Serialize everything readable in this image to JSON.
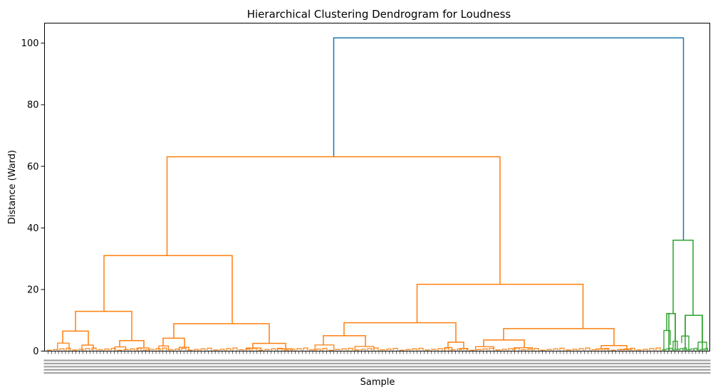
{
  "chart_data": {
    "type": "dendrogram",
    "title": "Hierarchical Clustering Dendrogram for Loudness",
    "xlabel": "Sample",
    "ylabel": "Distance (Ward)",
    "ylim": [
      0,
      106.5
    ],
    "yticks": [
      0,
      20,
      40,
      60,
      80,
      100
    ],
    "grid": false,
    "colors": {
      "root": "#1f77b4",
      "cluster_1": "#ff7f0e",
      "cluster_2": "#2ca02c"
    },
    "clusters": [
      {
        "name": "cluster_1",
        "color": "#ff7f0e"
      },
      {
        "name": "cluster_2",
        "color": "#2ca02c"
      }
    ],
    "merges": [
      {
        "id": "root",
        "height": 101.7,
        "children": [
          "A",
          "B"
        ],
        "color": "#1f77b4"
      },
      {
        "id": "A",
        "height": 63.1,
        "children": [
          "A1",
          "A2"
        ],
        "color": "#ff7f0e"
      },
      {
        "id": "A1",
        "height": 31.0,
        "children": [
          "A1a",
          "A1b"
        ],
        "color": "#ff7f0e"
      },
      {
        "id": "A1a",
        "height": 12.9,
        "children": [
          "A1a1",
          "A1a2"
        ],
        "color": "#ff7f0e"
      },
      {
        "id": "A1a1",
        "height": 6.5,
        "color": "#ff7f0e"
      },
      {
        "id": "A1a2",
        "height": 3.4,
        "color": "#ff7f0e"
      },
      {
        "id": "A1b",
        "height": 8.9,
        "children": [
          "A1b1",
          "A1b2"
        ],
        "color": "#ff7f0e"
      },
      {
        "id": "A1b1",
        "height": 4.2,
        "color": "#ff7f0e"
      },
      {
        "id": "A1b2",
        "height": 2.5,
        "color": "#ff7f0e"
      },
      {
        "id": "A2",
        "height": 21.7,
        "children": [
          "A2a",
          "A2b"
        ],
        "color": "#ff7f0e"
      },
      {
        "id": "A2a",
        "height": 9.2,
        "children": [
          "A2a1",
          "A2a2"
        ],
        "color": "#ff7f0e"
      },
      {
        "id": "A2a1",
        "height": 5.0,
        "color": "#ff7f0e"
      },
      {
        "id": "A2a2",
        "height": 2.9,
        "color": "#ff7f0e"
      },
      {
        "id": "A2b",
        "height": 7.3,
        "children": [
          "A2b1",
          "A2b2"
        ],
        "color": "#ff7f0e"
      },
      {
        "id": "A2b1",
        "height": 3.6,
        "color": "#ff7f0e"
      },
      {
        "id": "A2b2",
        "height": 1.8,
        "color": "#ff7f0e"
      },
      {
        "id": "B",
        "height": 36.0,
        "children": [
          "B1",
          "B2"
        ],
        "color": "#2ca02c"
      },
      {
        "id": "B1",
        "height": 12.2,
        "color": "#2ca02c"
      },
      {
        "id": "B2",
        "height": 11.6,
        "color": "#2ca02c"
      }
    ]
  }
}
